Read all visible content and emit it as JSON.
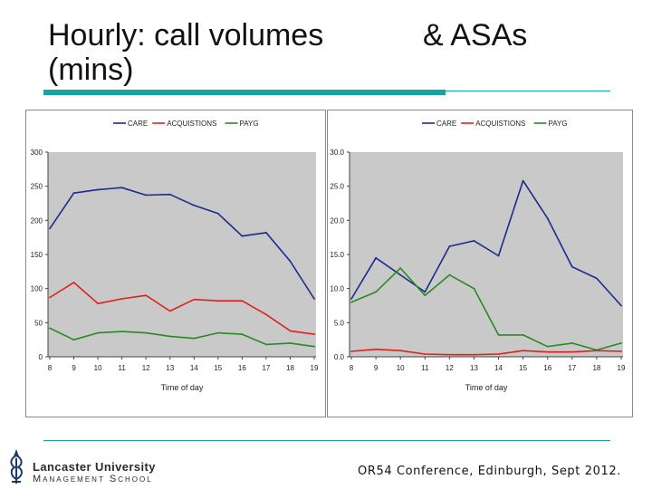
{
  "title_left": "Hourly: call volumes (mins)",
  "title_right": "& ASAs",
  "footer": "OR54 Conference, Edinburgh, Sept 2012.",
  "logo": {
    "line1": "Lancaster University",
    "line2": "Management School",
    "icon": "lancaster-logo-icon"
  },
  "colors": {
    "accent": "#13a3a3",
    "plot_bg": "#c9c9c9",
    "care": "#1c2a8c",
    "acquisitions": "#e0201b",
    "payg": "#2a8a25"
  },
  "chart_data": [
    {
      "type": "line",
      "xlabel": "Time of day",
      "ylabel": "",
      "x": [
        "8",
        "9",
        "10",
        "11",
        "12",
        "13",
        "14",
        "15",
        "16",
        "17",
        "18",
        "19"
      ],
      "ylim": [
        0,
        300
      ],
      "yticks": [
        "0",
        "50",
        "100",
        "150",
        "200",
        "250",
        "300"
      ],
      "grid": false,
      "legend_position": "top",
      "series": [
        {
          "name": "CARE",
          "color": "#1c2a8c",
          "values": [
            188,
            240,
            245,
            248,
            237,
            238,
            222,
            210,
            177,
            182,
            140,
            85
          ]
        },
        {
          "name": "ACQUISTIONS",
          "color": "#e0201b",
          "values": [
            87,
            109,
            78,
            85,
            90,
            67,
            84,
            82,
            82,
            62,
            38,
            33
          ]
        },
        {
          "name": "PAYG",
          "color": "#2a8a25",
          "values": [
            42,
            25,
            35,
            37,
            35,
            30,
            27,
            35,
            33,
            18,
            20,
            15
          ]
        }
      ]
    },
    {
      "type": "line",
      "xlabel": "Time of day",
      "ylabel": "",
      "x": [
        "8",
        "9",
        "10",
        "11",
        "12",
        "13",
        "14",
        "15",
        "16",
        "17",
        "18",
        "19"
      ],
      "ylim": [
        0,
        30
      ],
      "yticks": [
        "0.0",
        "5.0",
        "10.0",
        "15.0",
        "20.0",
        "25.0",
        "30.0"
      ],
      "grid": false,
      "legend_position": "top",
      "series": [
        {
          "name": "CARE",
          "color": "#1c2a8c",
          "values": [
            8.5,
            14.5,
            12.0,
            9.5,
            16.2,
            17.0,
            14.8,
            25.8,
            20.3,
            13.2,
            11.5,
            7.5
          ]
        },
        {
          "name": "ACQUISTIONS",
          "color": "#e0201b",
          "values": [
            0.8,
            1.1,
            0.9,
            0.4,
            0.3,
            0.3,
            0.4,
            0.9,
            0.7,
            0.7,
            0.9,
            0.8
          ]
        },
        {
          "name": "PAYG",
          "color": "#2a8a25",
          "values": [
            8.0,
            9.5,
            13.0,
            9.0,
            12.0,
            10.0,
            3.2,
            3.2,
            1.5,
            2.0,
            1.0,
            2.0
          ]
        }
      ]
    }
  ]
}
